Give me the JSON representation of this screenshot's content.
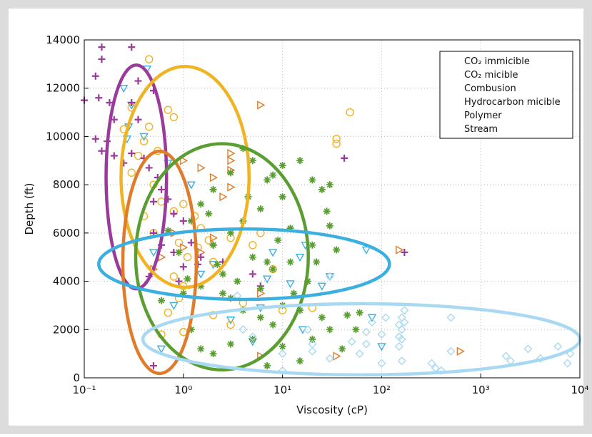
{
  "chart_data": {
    "type": "scatter",
    "xlabel": "Viscosity (cP)",
    "ylabel": "Depth (ft)",
    "xscale": "log",
    "xlim": [
      0.1,
      10000
    ],
    "ylim": [
      0,
      14000
    ],
    "xticks": [
      {
        "value": 0.1,
        "label": "10⁻¹"
      },
      {
        "value": 1,
        "label": "10⁰"
      },
      {
        "value": 10,
        "label": "10¹"
      },
      {
        "value": 100,
        "label": "10²"
      },
      {
        "value": 1000,
        "label": "10³"
      },
      {
        "value": 10000,
        "label": "10⁴"
      }
    ],
    "yticks": [
      0,
      2000,
      4000,
      6000,
      8000,
      10000,
      12000,
      14000
    ],
    "grid": true,
    "legend": "upper right",
    "series": [
      {
        "name": "CO₂ immicible",
        "color": "#3bb0e0",
        "marker": "triangle-down",
        "x": [
          0.43,
          0.3,
          0.25,
          0.28,
          0.27,
          0.4,
          0.7,
          1.2,
          0.8,
          0.6,
          5,
          3,
          7,
          8,
          12,
          15,
          17,
          25,
          30,
          70,
          80,
          100,
          16,
          2,
          0.5,
          1.5,
          6
        ],
        "y": [
          12800,
          11300,
          12000,
          10400,
          9900,
          10000,
          8900,
          8000,
          3000,
          1200,
          1500,
          2400,
          4100,
          5200,
          3900,
          5000,
          5500,
          3800,
          4200,
          5300,
          2500,
          1300,
          2000,
          4700,
          5200,
          4300,
          2900
        ]
      },
      {
        "name": "CO₂ micible",
        "color": "#f0b323",
        "marker": "circle",
        "x": [
          0.45,
          0.3,
          0.45,
          0.4,
          0.7,
          0.8,
          0.3,
          0.5,
          0.6,
          0.8,
          1,
          1.3,
          1.5,
          0.4,
          0.5,
          0.9,
          1.1,
          1.4,
          2,
          0.8,
          1,
          0.9,
          0.7,
          1,
          0.6,
          2,
          3,
          4,
          5,
          6,
          3,
          35,
          35,
          48,
          20,
          10,
          8,
          1.8,
          0.35,
          0.55,
          0.25
        ],
        "y": [
          13200,
          11200,
          10400,
          9800,
          11100,
          10800,
          8500,
          8000,
          7300,
          6900,
          7200,
          6700,
          6200,
          6700,
          6000,
          5600,
          5000,
          5400,
          4800,
          4200,
          3800,
          3300,
          2700,
          1900,
          1800,
          2600,
          2200,
          3100,
          5500,
          6000,
          5800,
          9900,
          9700,
          11000,
          2900,
          2800,
          4500,
          5700,
          9200,
          9400,
          10300
        ]
      },
      {
        "name": "Combusion",
        "color": "#e07b2a",
        "marker": "triangle-right",
        "x": [
          6,
          1,
          1.5,
          2,
          3,
          3,
          3,
          2.5,
          1,
          1.5,
          2,
          0.6,
          0.8,
          6,
          35,
          6,
          150,
          620,
          3,
          0.5
        ],
        "y": [
          11300,
          9000,
          8700,
          8300,
          9300,
          9000,
          8600,
          7500,
          5400,
          5200,
          5800,
          5000,
          6000,
          3500,
          900,
          900,
          5300,
          1100,
          7900,
          4500
        ]
      },
      {
        "name": "Hydrocarbon micible",
        "color": "#9a3a9a",
        "marker": "plus",
        "x": [
          0.15,
          0.15,
          0.3,
          0.13,
          0.14,
          0.1,
          0.18,
          0.2,
          0.3,
          0.35,
          0.13,
          0.15,
          0.17,
          0.2,
          0.3,
          0.25,
          0.4,
          0.45,
          0.55,
          0.6,
          0.5,
          0.7,
          0.8,
          1,
          0.5,
          0.6,
          0.8,
          1.2,
          1.5,
          2,
          2.5,
          1,
          0.45,
          0.5,
          0.9,
          5,
          6,
          42,
          170,
          0.35,
          0.5,
          1.4
        ],
        "y": [
          13700,
          13200,
          13700,
          12500,
          11600,
          11500,
          11400,
          10700,
          11400,
          10700,
          9900,
          9400,
          9800,
          9200,
          9300,
          8900,
          9100,
          8700,
          8300,
          7800,
          7300,
          7400,
          6800,
          6500,
          6000,
          5500,
          5200,
          5600,
          5000,
          5500,
          4800,
          4600,
          4200,
          500,
          4000,
          4300,
          3800,
          9100,
          5200,
          12300,
          11900,
          4700
        ]
      },
      {
        "name": "Polymer",
        "color": "#5a9e32",
        "marker": "asterisk",
        "x": [
          1.2,
          1.5,
          2,
          3,
          4,
          5,
          7,
          10,
          15,
          20,
          25,
          30,
          10,
          6,
          4,
          3,
          2,
          5,
          8,
          12,
          20,
          30,
          35,
          2.5,
          1.5,
          1,
          3,
          4,
          6,
          8,
          10,
          15,
          25,
          30,
          1.2,
          1.5,
          2,
          3,
          5,
          7,
          10,
          15,
          20,
          40,
          55,
          60,
          2.5,
          6,
          7,
          9,
          12,
          1.8,
          2.2,
          3.5,
          0.7,
          0.9,
          1.1,
          0.6,
          45,
          18,
          22,
          13,
          4.5,
          8,
          28
        ],
        "y": [
          6500,
          7200,
          7800,
          8500,
          9500,
          9000,
          8200,
          8800,
          9000,
          8200,
          7800,
          8000,
          7500,
          7000,
          6500,
          6000,
          5500,
          5000,
          4500,
          4800,
          5500,
          6300,
          5300,
          4300,
          3800,
          3500,
          3300,
          2800,
          2500,
          2200,
          3000,
          2800,
          2500,
          2000,
          2000,
          1200,
          1000,
          1400,
          1600,
          500,
          1300,
          700,
          1600,
          1200,
          2000,
          2700,
          3500,
          3700,
          4800,
          5700,
          6200,
          6800,
          4700,
          4000,
          6100,
          5200,
          4100,
          3200,
          2600,
          4000,
          4800,
          3500,
          7500,
          8400,
          6900
        ]
      },
      {
        "name": "Stream",
        "color": "#a9d9f2",
        "marker": "diamond",
        "x": [
          30,
          18,
          20,
          10,
          10,
          30,
          20,
          50,
          70,
          80,
          100,
          110,
          150,
          150,
          160,
          170,
          170,
          150,
          160,
          100,
          320,
          350,
          400,
          500,
          500,
          1800,
          2000,
          3000,
          4000,
          6000,
          8000,
          7500,
          4,
          5,
          3.5,
          70,
          60,
          160,
          160
        ],
        "y": [
          4200,
          2000,
          1400,
          300,
          1000,
          800,
          1100,
          1500,
          1900,
          2300,
          1800,
          2500,
          2200,
          1700,
          2500,
          2800,
          2300,
          1300,
          700,
          600,
          600,
          400,
          300,
          2500,
          1100,
          900,
          700,
          1200,
          800,
          1300,
          1000,
          600,
          2000,
          1700,
          3400,
          1400,
          1000,
          2000,
          1600
        ]
      }
    ],
    "ellipses": [
      {
        "color": "#9a3a9a",
        "xlim": [
          0.166,
          0.676
        ],
        "ylim": [
          3690,
          12960
        ]
      },
      {
        "color": "#f0b323",
        "xlim": [
          0.235,
          4.6
        ],
        "ylim": [
          3750,
          12900
        ]
      },
      {
        "color": "#e07b2a",
        "xlim": [
          0.245,
          1.35
        ],
        "ylim": [
          180,
          9390
        ]
      },
      {
        "color": "#5a9e32",
        "xlim": [
          0.33,
          18.2
        ],
        "ylim": [
          330,
          9700
        ]
      },
      {
        "color": "#3bb0e0",
        "xlim": [
          0.14,
          120
        ],
        "ylim": [
          3250,
          6170
        ]
      },
      {
        "color": "#a9d9f2",
        "xlim": [
          0.39,
          10000
        ],
        "ylim": [
          120,
          3070
        ]
      }
    ]
  }
}
